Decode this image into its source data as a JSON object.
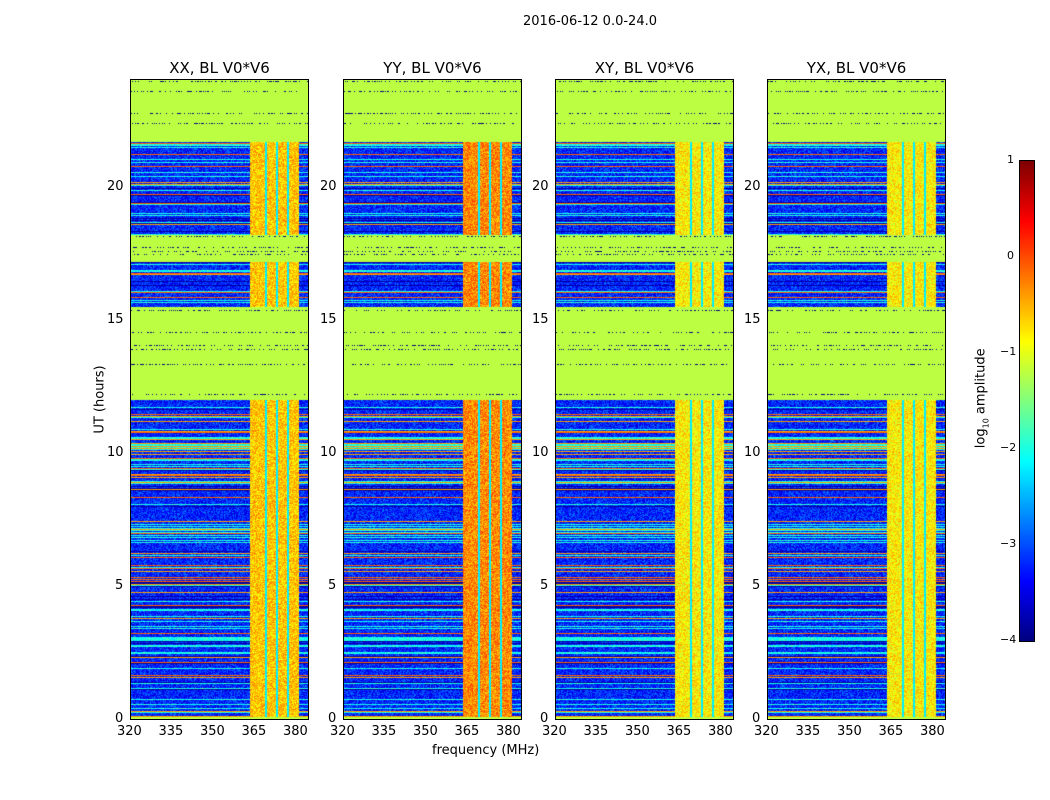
{
  "figure": {
    "suptitle": "2016-06-12 0.0-24.0"
  },
  "chart_data": {
    "type": "heatmap",
    "title": "2016-06-12 0.0-24.0",
    "xlabel": "frequency (MHz)",
    "ylabel": "UT (hours)",
    "xlim": [
      320,
      384
    ],
    "ylim": [
      0,
      24
    ],
    "xticks": [
      320,
      335,
      350,
      365,
      380
    ],
    "yticks": [
      0,
      5,
      10,
      15,
      20
    ],
    "panels": [
      {
        "title": "XX, BL V0*V6",
        "band_level": -0.6
      },
      {
        "title": "YY, BL V0*V6",
        "band_level": -0.3
      },
      {
        "title": "XY, BL V0*V6",
        "band_level": -0.8
      },
      {
        "title": "YX, BL V0*V6",
        "band_level": -0.8
      }
    ],
    "flagged_hours": [
      [
        21.7,
        24
      ],
      [
        17.2,
        18.2
      ],
      [
        12.0,
        15.5
      ]
    ],
    "rfi_band_mhz": [
      363,
      380.5
    ],
    "rfi_gaps_mhz": [
      368.5,
      372.5,
      376.5
    ],
    "background_level": -3.2,
    "flagged_level": -1.2,
    "colorbar": {
      "label": "log10 amplitude",
      "label_main": "log",
      "label_sub": "10",
      "label_rest": " amplitude",
      "clim": [
        -4,
        1
      ],
      "ticks": [
        "1",
        "0",
        "−1",
        "−2",
        "−3",
        "−4"
      ],
      "colormap": "jet"
    }
  }
}
